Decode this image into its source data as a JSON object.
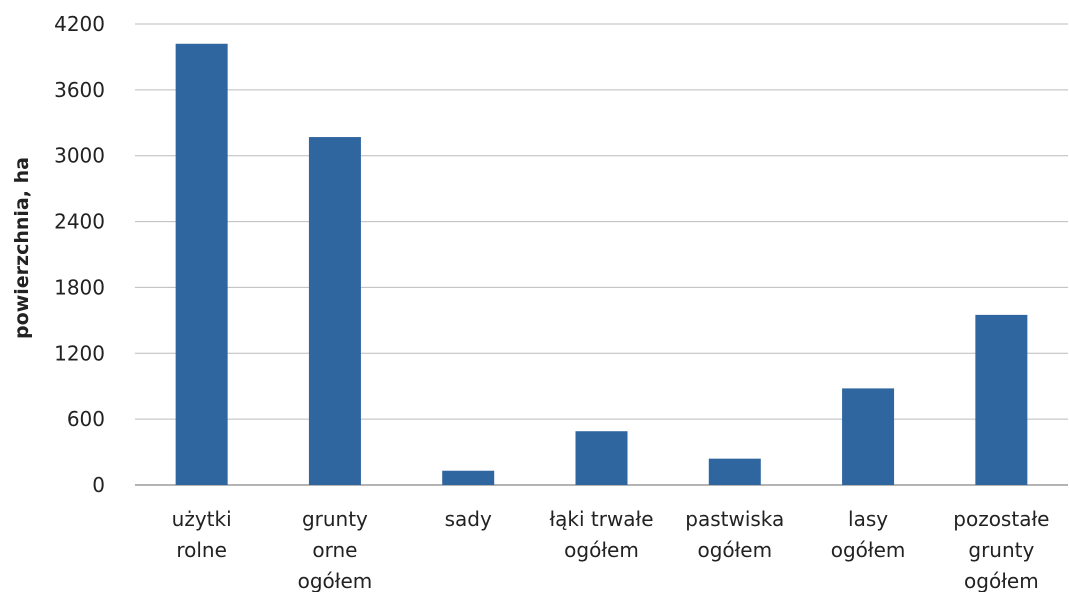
{
  "chart_data": {
    "type": "bar",
    "title": "",
    "xlabel": "",
    "ylabel": "powierzchnia, ha",
    "ylim": [
      0,
      4200
    ],
    "yticks": [
      0,
      600,
      1200,
      1800,
      2400,
      3000,
      3600,
      4200
    ],
    "grid": true,
    "legend": "none",
    "bar_color": "#2f66a0",
    "grid_color": "#bcbcbc",
    "categories": [
      [
        "użytki",
        "rolne"
      ],
      [
        "grunty",
        "orne",
        "ogółem"
      ],
      [
        "sady"
      ],
      [
        "łąki trwałe",
        "ogółem"
      ],
      [
        "pastwiska",
        "ogółem"
      ],
      [
        "lasy",
        "ogółem"
      ],
      [
        "pozostałe",
        "grunty",
        "ogółem"
      ]
    ],
    "values": [
      4020,
      3170,
      130,
      490,
      240,
      880,
      1550
    ]
  }
}
